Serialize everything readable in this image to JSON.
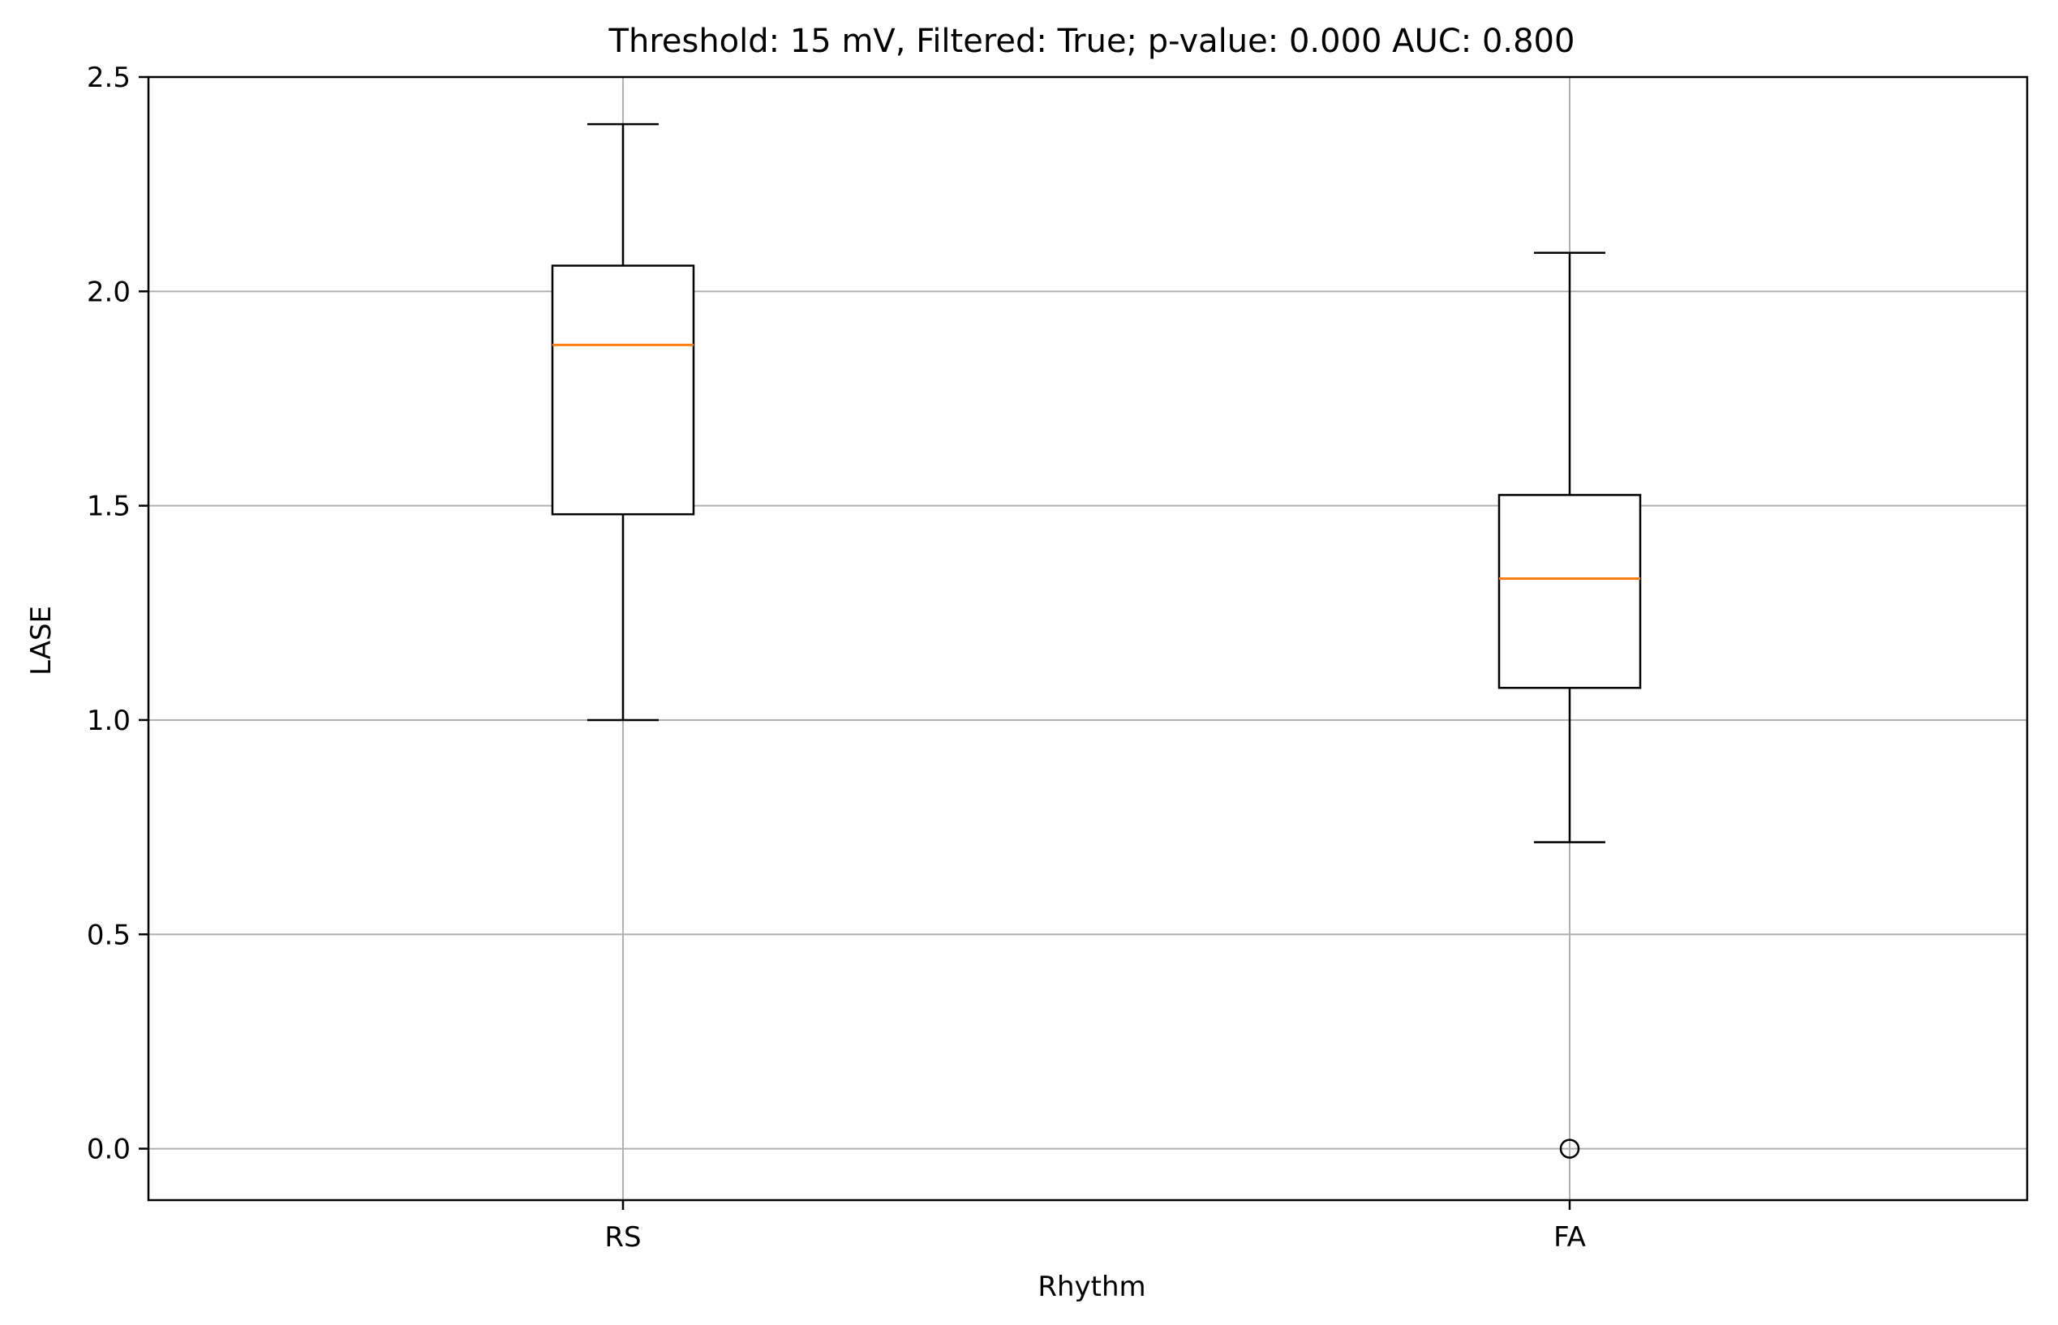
{
  "chart_data": {
    "type": "boxplot",
    "title": "Threshold: 15 mV, Filtered: True; p-value: 0.000 AUC: 0.800",
    "xlabel": "Rhythm",
    "ylabel": "LASE",
    "categories": [
      "RS",
      "FA"
    ],
    "ylim": [
      -0.12,
      2.5
    ],
    "yticks": [
      0.0,
      0.5,
      1.0,
      1.5,
      2.0,
      2.5
    ],
    "ytick_labels": [
      "0.0",
      "0.5",
      "1.0",
      "1.5",
      "2.0",
      "2.5"
    ],
    "grid": true,
    "boxes": [
      {
        "category": "RS",
        "whisker_low": 1.0,
        "q1": 1.48,
        "median": 1.875,
        "q3": 2.06,
        "whisker_high": 2.39,
        "outliers": []
      },
      {
        "category": "FA",
        "whisker_low": 0.715,
        "q1": 1.075,
        "median": 1.33,
        "q3": 1.525,
        "whisker_high": 2.09,
        "outliers": [
          0.0
        ]
      }
    ],
    "colors": {
      "box": "#000000",
      "median": "#ff7f0e",
      "grid": "#b0b0b0",
      "outlier": "#000000"
    }
  }
}
